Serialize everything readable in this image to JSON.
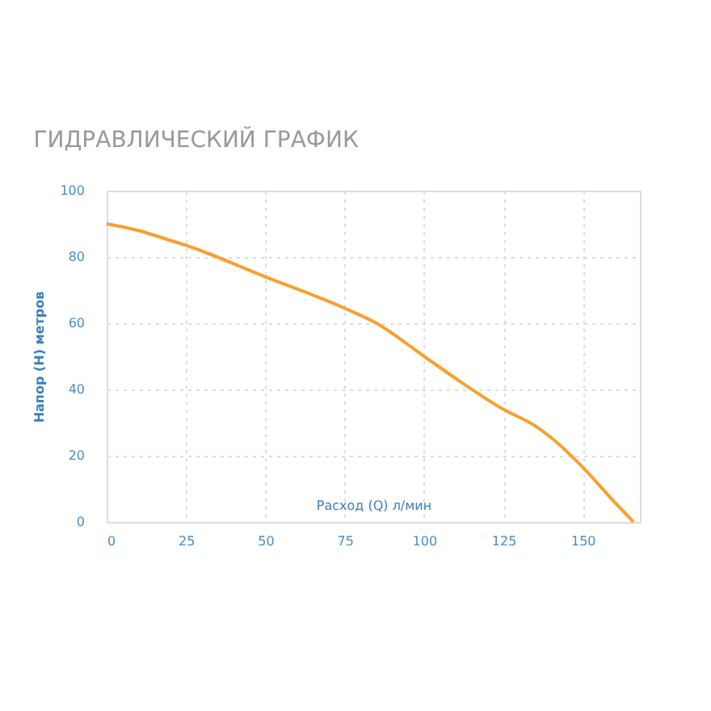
{
  "chart_data": {
    "type": "line",
    "title": "ГИДРАВЛИЧЕСКИЙ ГРАФИК",
    "xlabel": "Расход (Q) л/мин",
    "ylabel": "Напор (H) метров",
    "x": [
      0,
      10,
      20,
      25,
      50,
      75,
      85,
      100,
      112,
      125,
      135,
      140,
      150,
      160,
      166
    ],
    "series": [
      {
        "color": "#f7a030",
        "values": [
          90,
          88,
          85,
          83.5,
          74,
          64.5,
          60,
          50,
          42,
          34,
          29,
          25.5,
          16.5,
          6,
          0
        ]
      }
    ],
    "xlim": [
      0,
      168
    ],
    "xticks": [
      0,
      25,
      50,
      75,
      100,
      125,
      150
    ],
    "ylim": [
      0,
      100
    ],
    "yticks": [
      0,
      20,
      40,
      60,
      80,
      100
    ],
    "grid": true,
    "marker": "none",
    "line_style": "solid"
  }
}
